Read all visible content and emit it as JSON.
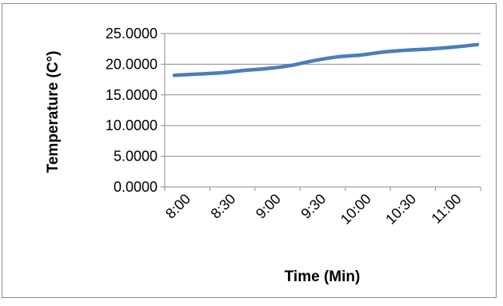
{
  "chart_data": {
    "type": "line",
    "title": "",
    "xlabel": "Time (Min)",
    "ylabel": "Temperature (C°)",
    "categories": [
      "8:00",
      "8:30",
      "9:00",
      "9:30",
      "10:00",
      "10:30",
      "11:00"
    ],
    "y_ticks": [
      "0.0000",
      "5.0000",
      "10.0000",
      "15.0000",
      "20.0000",
      "25.0000"
    ],
    "ylim": [
      0,
      25
    ],
    "grid": true,
    "legend": "none",
    "series": [
      {
        "values": [
          18.2,
          18.4,
          18.6,
          19.0,
          19.3,
          19.8,
          20.6,
          21.2,
          21.5,
          22.0,
          22.3,
          22.5,
          22.8,
          23.2
        ],
        "x": [
          "8:00",
          "8:15",
          "8:30",
          "8:45",
          "9:00",
          "9:15",
          "9:30",
          "9:45",
          "10:00",
          "10:15",
          "10:30",
          "10:45",
          "11:00",
          "11:15"
        ],
        "color": "#4a7ebb"
      }
    ]
  }
}
